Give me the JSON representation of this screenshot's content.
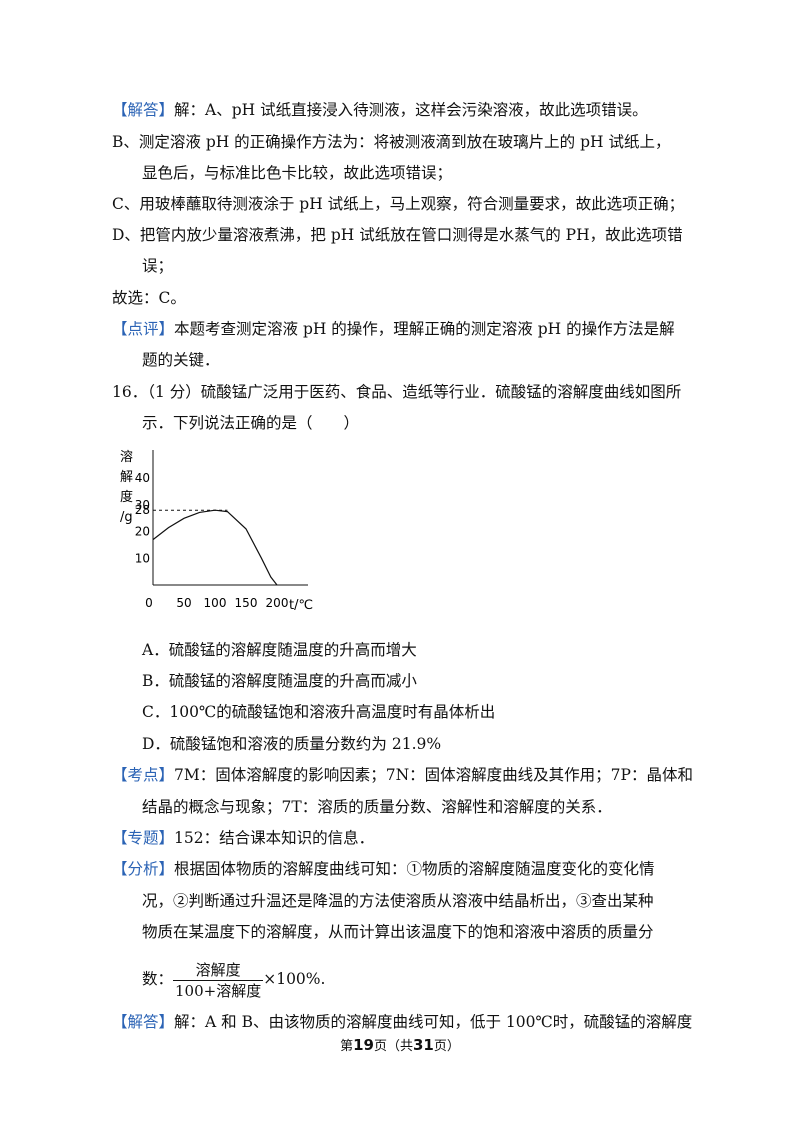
{
  "text": {
    "l1_tag": "【解答】",
    "l1": "解：A、pH 试纸直接浸入待测液，这样会污染溶液，故此选项错误。",
    "l2": "B、测定溶液 pH 的正确操作方法为：将被测液滴到放在玻璃片上的 pH 试纸上，",
    "l3": "显色后，与标准比色卡比较，故此选项错误；",
    "l4": "C、用玻棒蘸取待测液涂于 pH 试纸上，马上观察，符合测量要求，故此选项正确；",
    "l5": "D、把管内放少量溶液煮沸，把 pH 试纸放在管口测得是水蒸气的 PH，故此选项错",
    "l6": "误；",
    "l7": "故选：C。",
    "l8_tag": "【点评】",
    "l8": "本题考查测定溶液 pH 的操作，理解正确的测定溶液 pH 的操作方法是解",
    "l9": "题的关键．",
    "q16_a": "16．（1 分）硫酸锰广泛用于医药、食品、造纸等行业．硫酸锰的溶解度曲线如图所",
    "q16_b": "示．下列说法正确的是（　　）",
    "optA": "A．硫酸锰的溶解度随温度的升高而增大",
    "optB": "B．硫酸锰的溶解度随温度的升高而减小",
    "optC": "C．100℃的硫酸锰饱和溶液升高温度时有晶体析出",
    "optD": "D．硫酸锰饱和溶液的质量分数约为 21.9%",
    "kd_tag": "【考点】",
    "kd1": "7M：固体溶解度的影响因素；7N：固体溶解度曲线及其作用；7P：晶体和",
    "kd2": "结晶的概念与现象；7T：溶质的质量分数、溶解性和溶解度的关系．",
    "zt_tag": "【专题】",
    "zt": "152：结合课本知识的信息．",
    "fx_tag": "【分析】",
    "fx1": "根据固体物质的溶解度曲线可知：①物质的溶解度随温度变化的变化情",
    "fx2": "况，②判断通过升温还是降温的方法使溶质从溶液中结晶析出，③查出某种",
    "fx3": "物质在某温度下的溶解度，从而计算出该温度下的饱和溶液中溶质的质量分",
    "fx4_pre": "数：",
    "frac_num": "溶解度",
    "frac_den": "100+溶解度",
    "fx4_post": "×100%.",
    "jd_tag": "【解答】",
    "jd": "解：A 和 B、由该物质的溶解度曲线可知，低于 100℃时，硫酸锰的溶解度"
  },
  "footer": {
    "pre": "第",
    "page": "19",
    "mid": "页（共",
    "total": "31",
    "post": "页）"
  },
  "chart_labels": {
    "ylabel_chars": [
      "溶",
      "解",
      "度",
      "/g"
    ],
    "xlabel": "t/℃"
  },
  "chart_data": {
    "type": "line",
    "title": "",
    "xlabel": "t/℃",
    "ylabel": "溶解度/g",
    "xticks": [
      0,
      50,
      100,
      150,
      200
    ],
    "yticks": [
      10,
      20,
      28,
      30,
      40
    ],
    "xlim": [
      0,
      230
    ],
    "ylim": [
      0,
      45
    ],
    "reference_line": {
      "y": 28,
      "x_to": 120,
      "style": "dashed"
    },
    "series": [
      {
        "values_x": [
          0,
          25,
          50,
          75,
          100,
          120,
          150,
          175,
          190,
          200
        ],
        "values_y": [
          17,
          21.5,
          25,
          27.2,
          28,
          27.5,
          21,
          10,
          3,
          0
        ]
      }
    ]
  },
  "colors": {
    "tag": "#2b63b5",
    "text": "#111111"
  }
}
